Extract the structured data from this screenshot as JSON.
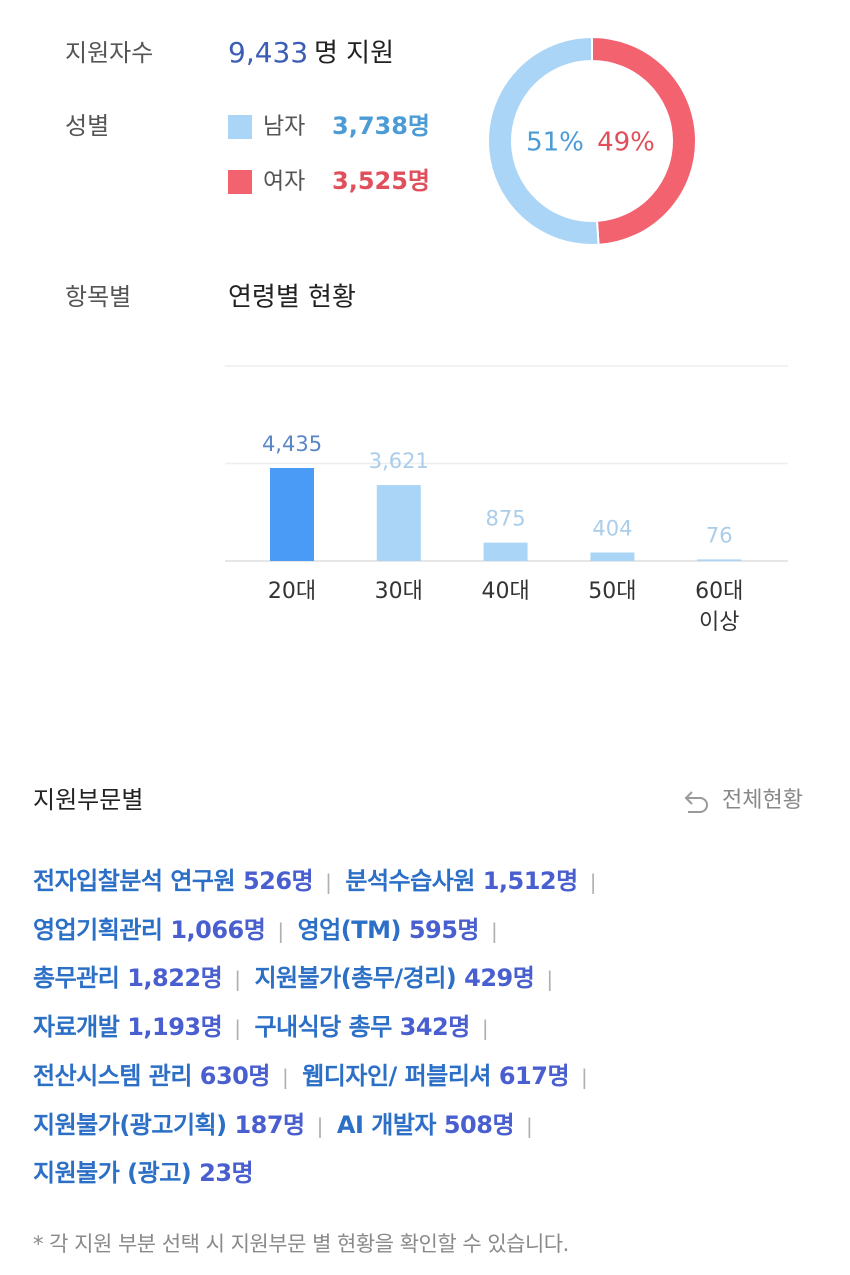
{
  "applicants": {
    "label": "지원자수",
    "count": "9,433",
    "unit": "명 지원"
  },
  "gender": {
    "label": "성별"
  },
  "chart_data": [
    {
      "type": "pie",
      "categories": [
        "남자",
        "여자"
      ],
      "counts": [
        "3,738명",
        "3,525명"
      ],
      "values": [
        51,
        49
      ],
      "value_labels": [
        "51%",
        "49%"
      ],
      "colors": [
        "#aad5f6",
        "#f3626f"
      ]
    },
    {
      "type": "bar",
      "label": "항목별",
      "title": "연령별 현황",
      "categories": [
        "20대",
        "30대",
        "40대",
        "50대",
        "60대 이상"
      ],
      "values": [
        4435,
        3621,
        875,
        404,
        76
      ],
      "value_labels": [
        "4,435",
        "3,621",
        "875",
        "404",
        "76"
      ],
      "colors": [
        "#4a9bf5",
        "#aad5f6",
        "#aad5f6",
        "#aad5f6",
        "#aad5f6"
      ],
      "ylim": [
        0,
        9300
      ],
      "yticks": [
        0,
        4650,
        9300
      ],
      "grid": true
    }
  ],
  "departments": {
    "title": "지원부문별",
    "reset": "전체현황",
    "items": [
      {
        "name": "전자입찰분석 연구원",
        "count": "526명"
      },
      {
        "name": "분석수습사원",
        "count": "1,512명"
      },
      {
        "name": "영업기획관리",
        "count": "1,066명"
      },
      {
        "name": "영업(TM)",
        "count": "595명"
      },
      {
        "name": "총무관리",
        "count": "1,822명"
      },
      {
        "name": "지원불가(총무/경리)",
        "count": "429명"
      },
      {
        "name": "자료개발",
        "count": "1,193명"
      },
      {
        "name": "구내식당 총무",
        "count": "342명"
      },
      {
        "name": "전산시스템 관리",
        "count": "630명"
      },
      {
        "name": "웹디자인/ 퍼블리셔",
        "count": "617명"
      },
      {
        "name": "지원불가(광고기획)",
        "count": "187명"
      },
      {
        "name": "AI 개발자",
        "count": "508명"
      },
      {
        "name": "지원불가 (광고)",
        "count": "23명"
      }
    ]
  },
  "footnote": "* 각 지원 부분 선택 시 지원부문 별 현황을 확인할 수 있습니다."
}
